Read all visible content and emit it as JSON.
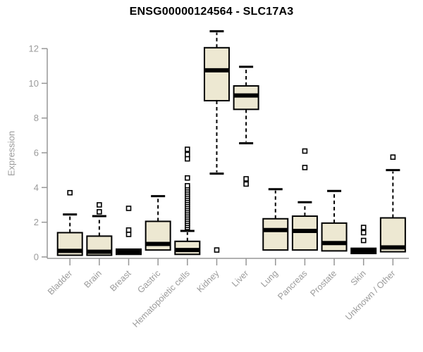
{
  "colors": {
    "background": "#ffffff",
    "box_fill": "#ede8d2",
    "box_stroke": "#000000",
    "median": "#000000",
    "whisker": "#000000",
    "axis_line": "#979797",
    "tick_text": "#9b9b9b",
    "title_text": "#000000"
  },
  "chart_data": {
    "type": "boxplot",
    "title": "ENSG00000124564 - SLC17A3",
    "ylabel": "Expression",
    "xlabel": "",
    "ylim": [
      0,
      13.2
    ],
    "yticks": [
      0,
      2,
      4,
      6,
      8,
      10,
      12
    ],
    "grid": false,
    "x_tick_label_rotation_deg": -45,
    "categories": [
      "Bladder",
      "Brain",
      "Breast",
      "Gastric",
      "Hematopoietic cells",
      "Kidney",
      "Liver",
      "Lung",
      "Pancreas",
      "Prostate",
      "Skin",
      "Unknown / Other"
    ],
    "series": [
      {
        "category": "Bladder",
        "q1": 0.1,
        "median": 0.35,
        "q3": 1.4,
        "whisker_low": null,
        "whisker_high": 2.45,
        "outliers": [
          3.7
        ]
      },
      {
        "category": "Brain",
        "q1": 0.1,
        "median": 0.3,
        "q3": 1.2,
        "whisker_low": null,
        "whisker_high": 2.35,
        "outliers": [
          3.0,
          2.6
        ]
      },
      {
        "category": "Breast",
        "q1": 0.15,
        "median": 0.3,
        "q3": 0.45,
        "whisker_low": null,
        "whisker_high": null,
        "outliers": [
          2.8,
          1.55,
          1.3
        ]
      },
      {
        "category": "Gastric",
        "q1": 0.4,
        "median": 0.75,
        "q3": 2.05,
        "whisker_low": null,
        "whisker_high": 3.5,
        "outliers": []
      },
      {
        "category": "Hematopoietic cells",
        "q1": 0.15,
        "median": 0.4,
        "q3": 0.9,
        "whisker_low": null,
        "whisker_high": 1.5,
        "outliers": [
          6.2,
          5.9,
          5.65,
          4.55
        ],
        "outlier_band": {
          "from": 1.7,
          "to": 4.2,
          "step": 0.12
        }
      },
      {
        "category": "Kidney",
        "q1": 9.0,
        "median": 10.75,
        "q3": 12.05,
        "whisker_low": 4.8,
        "whisker_high": 13.0,
        "outliers": [
          0.4
        ]
      },
      {
        "category": "Liver",
        "q1": 8.5,
        "median": 9.3,
        "q3": 9.85,
        "whisker_low": 6.55,
        "whisker_high": 10.95,
        "outliers": [
          4.5,
          4.2
        ]
      },
      {
        "category": "Lung",
        "q1": 0.4,
        "median": 1.55,
        "q3": 2.2,
        "whisker_low": null,
        "whisker_high": 3.9,
        "outliers": []
      },
      {
        "category": "Pancreas",
        "q1": 0.4,
        "median": 1.5,
        "q3": 2.35,
        "whisker_low": null,
        "whisker_high": 3.15,
        "outliers": [
          6.1,
          5.15
        ]
      },
      {
        "category": "Prostate",
        "q1": 0.35,
        "median": 0.8,
        "q3": 1.95,
        "whisker_low": null,
        "whisker_high": 3.8,
        "outliers": []
      },
      {
        "category": "Skin",
        "q1": 0.2,
        "median": 0.35,
        "q3": 0.5,
        "whisker_low": null,
        "whisker_high": null,
        "outliers": [
          1.7,
          1.4,
          0.95
        ]
      },
      {
        "category": "Unknown / Other",
        "q1": 0.3,
        "median": 0.55,
        "q3": 2.25,
        "whisker_low": null,
        "whisker_high": 5.0,
        "outliers": [
          5.75
        ]
      }
    ]
  }
}
